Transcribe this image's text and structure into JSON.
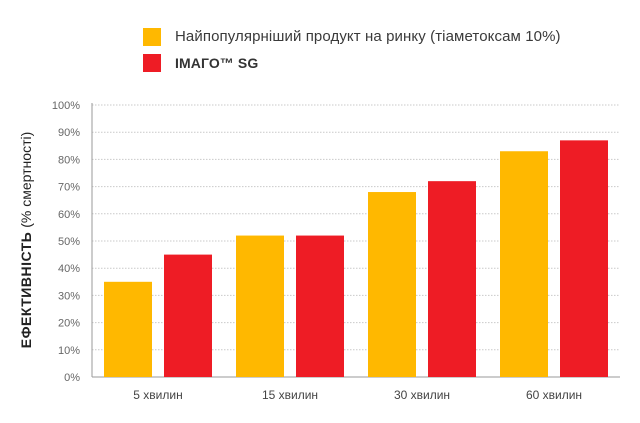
{
  "chart_data": {
    "type": "bar",
    "categories": [
      "5 хвилин",
      "15 хвилин",
      "30 хвилин",
      "60 хвилин"
    ],
    "series": [
      {
        "name": "Найпопулярніший продукт на ринку (тіаметоксам 10%)",
        "values": [
          35,
          52,
          68,
          83
        ],
        "color": "#FFB800"
      },
      {
        "name": "ІМАГО™ SG",
        "values": [
          45,
          52,
          72,
          87
        ],
        "color": "#EE1C25"
      }
    ],
    "ylabel_main": "ЕФЕКТИВНІСТЬ",
    "ylabel_unit": "(% смертності)",
    "yticks": [
      "0%",
      "10%",
      "20%",
      "30%",
      "40%",
      "50%",
      "60%",
      "70%",
      "80%",
      "90%",
      "100%"
    ],
    "ylim": [
      0,
      100
    ],
    "grid": true,
    "legend_position": "top"
  }
}
